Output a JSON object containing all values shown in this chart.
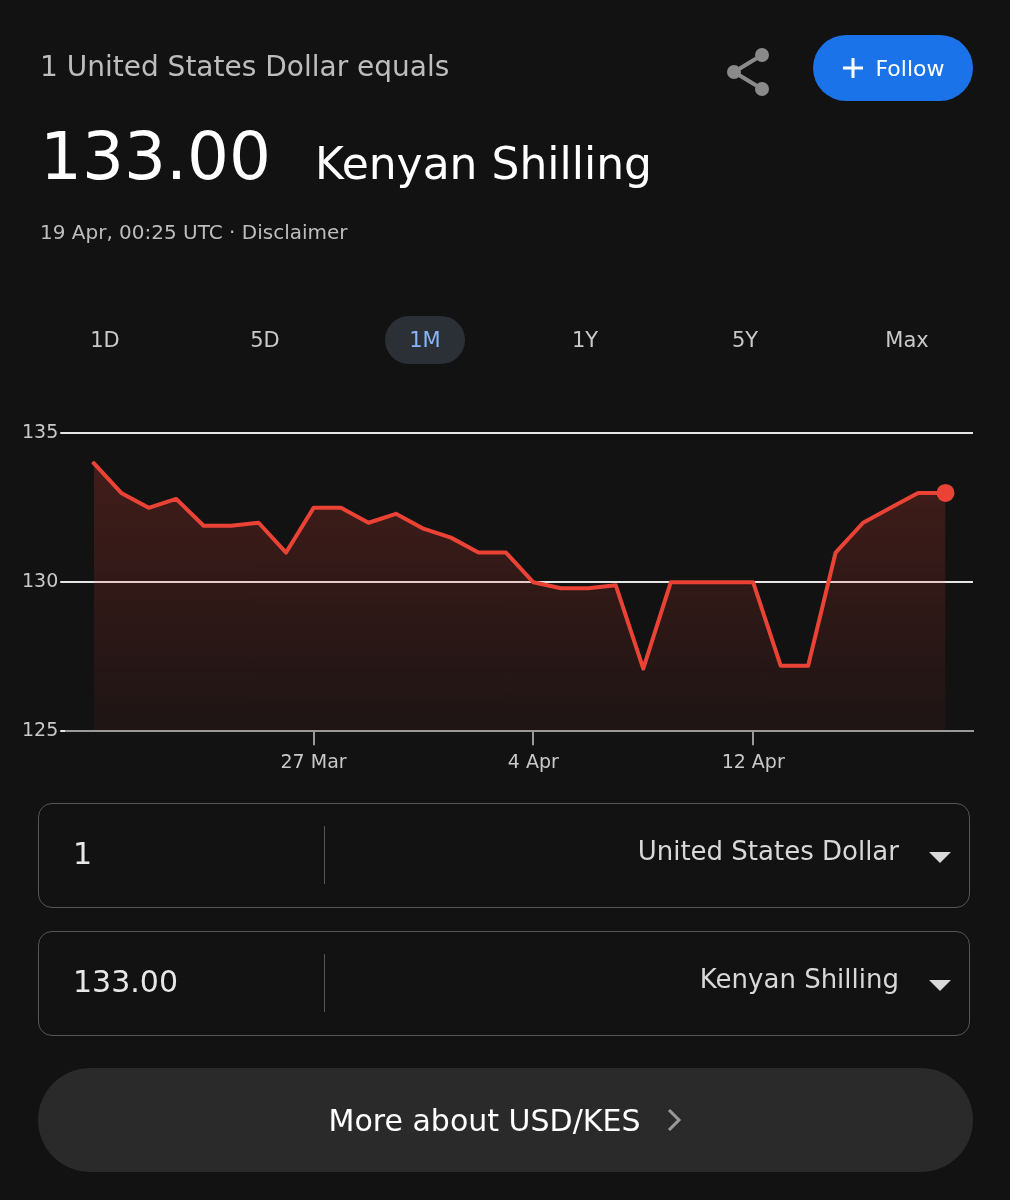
{
  "chart_data": {
    "type": "area",
    "title": "1 United States Dollar equals",
    "annotations": [
      "133.00",
      "Kenyan Shilling",
      "19 Apr, 00:25 UTC · Disclaimer",
      "Follow",
      "1D",
      "5D",
      "1M",
      "1Y",
      "5Y",
      "Max",
      "1",
      "United States Dollar",
      "133.00",
      "Kenyan Shilling",
      "More about USD/KES"
    ],
    "x": [
      "--03-19",
      "--03-20",
      "--03-21",
      "--03-22",
      "--03-23",
      "--03-24",
      "--03-25",
      "--03-26",
      "--03-27",
      "--03-28",
      "--03-29",
      "--03-30",
      "--03-31",
      "--04-01",
      "--04-02",
      "--04-03",
      "--04-04",
      "--04-05",
      "--04-06",
      "--04-07",
      "--04-08",
      "--04-09",
      "--04-10",
      "--04-11",
      "--04-12",
      "--04-13",
      "--04-14",
      "--04-15",
      "--04-16",
      "--04-17",
      "--04-18",
      "--04-19"
    ],
    "values": [
      134.0,
      133.0,
      132.5,
      132.8,
      131.9,
      131.9,
      132.0,
      131.0,
      132.5,
      132.5,
      132.0,
      132.3,
      131.8,
      131.5,
      131.0,
      131.0,
      130.0,
      129.8,
      129.8,
      129.9,
      127.1,
      130.0,
      130.0,
      130.0,
      130.0,
      127.2,
      127.2,
      131.0,
      132.0,
      132.5,
      133.0,
      133.0
    ],
    "color": "#ea4335",
    "xlim": [
      "--03-18",
      "--04-20"
    ],
    "xticks": [
      {
        "value": "--03-27",
        "label": "27 Mar"
      },
      {
        "value": "--04-04",
        "label": "4 Apr"
      },
      {
        "value": "--04-12",
        "label": "12 Apr"
      }
    ],
    "ylim": [
      125,
      135
    ],
    "yticks": [
      125,
      130,
      135
    ],
    "grid": "y",
    "legend": false
  }
}
